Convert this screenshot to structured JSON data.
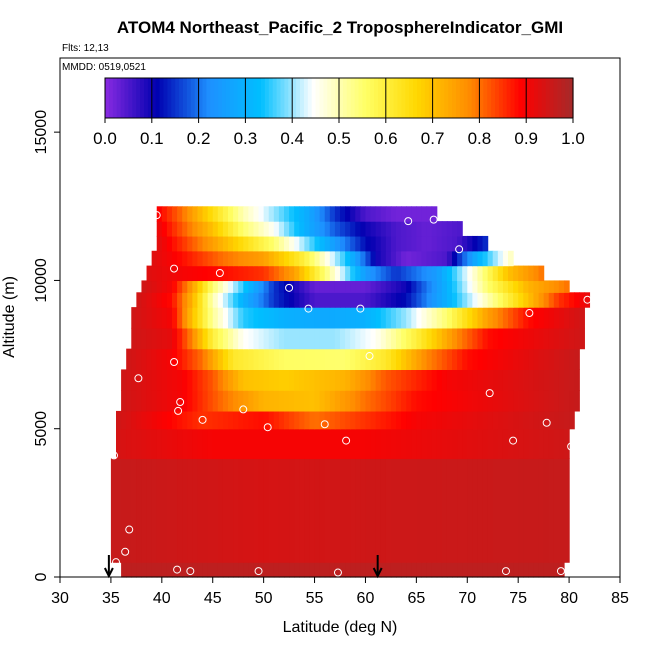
{
  "chart_data": {
    "type": "heatmap",
    "title": "ATOM4 Northeast_Pacific_2 TroposphereIndicator_GMI",
    "flights_note": "Flts: 12,13",
    "date_note": "MMDD: 0519,0521",
    "xlabel": "Latitude (deg N)",
    "ylabel": "Altitude (m)",
    "xlim": [
      30,
      85
    ],
    "ylim": [
      0,
      17500
    ],
    "x_ticks": [
      "30",
      "35",
      "40",
      "45",
      "50",
      "55",
      "60",
      "65",
      "70",
      "75",
      "80",
      "85"
    ],
    "y_ticks": [
      "0",
      "5000",
      "10000",
      "15000"
    ],
    "colorbar": {
      "range": [
        0.0,
        1.0
      ],
      "tick_labels": [
        "0.0",
        "0.1",
        "0.2",
        "0.3",
        "0.4",
        "0.5",
        "0.6",
        "0.7",
        "0.8",
        "0.9",
        "1.0"
      ],
      "colors": [
        "#8a2be2",
        "#0000b0",
        "#1e90ff",
        "#00bfff",
        "#ffffff",
        "#ffff66",
        "#ffd700",
        "#ff8c00",
        "#ff0000",
        "#a52a2a"
      ]
    },
    "field": {
      "description_rows": "altitude band (m) with latitude extent and value profile along latitude",
      "rows": [
        {
          "alt": [
            0,
            500
          ],
          "lat": [
            36.0,
            79.5
          ],
          "profile": [
            [
              36,
              0.97
            ],
            [
              79.5,
              0.97
            ]
          ]
        },
        {
          "alt": [
            500,
            4000
          ],
          "lat": [
            35.0,
            80.0
          ],
          "profile": [
            [
              35,
              0.96
            ],
            [
              50,
              0.94
            ],
            [
              60,
              0.95
            ],
            [
              80,
              0.96
            ]
          ]
        },
        {
          "alt": [
            4000,
            5000
          ],
          "lat": [
            35.5,
            80.0
          ],
          "profile": [
            [
              35.5,
              0.94
            ],
            [
              45,
              0.9
            ],
            [
              60,
              0.9
            ],
            [
              80,
              0.95
            ]
          ]
        },
        {
          "alt": [
            5000,
            5600
          ],
          "lat": [
            35.5,
            80.5
          ],
          "profile": [
            [
              35.5,
              0.95
            ],
            [
              44,
              0.85
            ],
            [
              50,
              0.88
            ],
            [
              55,
              0.8
            ],
            [
              60,
              0.85
            ],
            [
              65,
              0.9
            ],
            [
              80.5,
              0.96
            ]
          ]
        },
        {
          "alt": [
            5600,
            6300
          ],
          "lat": [
            36.0,
            81.0
          ],
          "profile": [
            [
              36,
              0.95
            ],
            [
              42,
              0.9
            ],
            [
              46,
              0.8
            ],
            [
              50,
              0.72
            ],
            [
              55,
              0.7
            ],
            [
              60,
              0.8
            ],
            [
              65,
              0.88
            ],
            [
              81,
              0.96
            ]
          ]
        },
        {
          "alt": [
            6300,
            7000
          ],
          "lat": [
            36.0,
            81.0
          ],
          "profile": [
            [
              36,
              0.95
            ],
            [
              42,
              0.9
            ],
            [
              45,
              0.82
            ],
            [
              48,
              0.7
            ],
            [
              52,
              0.68
            ],
            [
              58,
              0.72
            ],
            [
              62,
              0.82
            ],
            [
              68,
              0.9
            ],
            [
              81,
              0.96
            ]
          ]
        },
        {
          "alt": [
            7000,
            7700
          ],
          "lat": [
            36.5,
            81.0
          ],
          "profile": [
            [
              36.5,
              0.95
            ],
            [
              41,
              0.9
            ],
            [
              44,
              0.8
            ],
            [
              47,
              0.62
            ],
            [
              52,
              0.56
            ],
            [
              58,
              0.55
            ],
            [
              62,
              0.62
            ],
            [
              66,
              0.78
            ],
            [
              70,
              0.88
            ],
            [
              81,
              0.96
            ]
          ]
        },
        {
          "alt": [
            7700,
            8400
          ],
          "lat": [
            37.0,
            81.5
          ],
          "profile": [
            [
              37,
              0.95
            ],
            [
              41,
              0.92
            ],
            [
              43,
              0.78
            ],
            [
              45,
              0.6
            ],
            [
              48,
              0.45
            ],
            [
              52,
              0.4
            ],
            [
              57,
              0.4
            ],
            [
              61,
              0.45
            ],
            [
              65,
              0.6
            ],
            [
              69,
              0.78
            ],
            [
              72,
              0.88
            ],
            [
              81.5,
              0.95
            ]
          ]
        },
        {
          "alt": [
            8400,
            9100
          ],
          "lat": [
            37.0,
            81.5
          ],
          "profile": [
            [
              37,
              0.95
            ],
            [
              41,
              0.9
            ],
            [
              43,
              0.7
            ],
            [
              45,
              0.52
            ],
            [
              48,
              0.35
            ],
            [
              52,
              0.3
            ],
            [
              56,
              0.28
            ],
            [
              60,
              0.3
            ],
            [
              64,
              0.4
            ],
            [
              68,
              0.55
            ],
            [
              72,
              0.75
            ],
            [
              76,
              0.88
            ],
            [
              81.5,
              0.95
            ]
          ]
        },
        {
          "alt": [
            9100,
            9600
          ],
          "lat": [
            37.5,
            82.0
          ],
          "profile": [
            [
              37.5,
              0.95
            ],
            [
              41,
              0.88
            ],
            [
              43,
              0.72
            ],
            [
              45,
              0.5
            ],
            [
              48,
              0.3
            ],
            [
              51,
              0.15
            ],
            [
              55,
              0.05
            ],
            [
              60,
              0.05
            ],
            [
              64,
              0.12
            ],
            [
              68,
              0.3
            ],
            [
              72,
              0.5
            ],
            [
              76,
              0.7
            ],
            [
              79,
              0.85
            ],
            [
              82,
              0.92
            ]
          ]
        },
        {
          "alt": [
            9600,
            10000
          ],
          "lat": [
            38.0,
            80.0
          ],
          "profile": [
            [
              38,
              0.95
            ],
            [
              41,
              0.9
            ],
            [
              43,
              0.75
            ],
            [
              45,
              0.55
            ],
            [
              48,
              0.35
            ],
            [
              51,
              0.15
            ],
            [
              55,
              0.03
            ],
            [
              60,
              0.03
            ],
            [
              64,
              0.1
            ],
            [
              68,
              0.3
            ],
            [
              72,
              0.55
            ],
            [
              76,
              0.72
            ],
            [
              80,
              0.8
            ]
          ]
        },
        {
          "alt": [
            10000,
            10500
          ],
          "lat": [
            38.5,
            77.5
          ],
          "profile": [
            [
              38.5,
              0.93
            ],
            [
              42,
              0.9
            ],
            [
              46,
              0.88
            ],
            [
              50,
              0.85
            ],
            [
              53,
              0.75
            ],
            [
              56,
              0.55
            ],
            [
              60,
              0.25
            ],
            [
              63,
              0.15
            ],
            [
              67,
              0.25
            ],
            [
              71,
              0.5
            ],
            [
              74,
              0.7
            ],
            [
              77.5,
              0.8
            ]
          ]
        },
        {
          "alt": [
            10500,
            11000
          ],
          "lat": [
            39.0,
            74.5
          ],
          "profile": [
            [
              39,
              0.93
            ],
            [
              42,
              0.88
            ],
            [
              46,
              0.8
            ],
            [
              50,
              0.75
            ],
            [
              54,
              0.6
            ],
            [
              58,
              0.35
            ],
            [
              61,
              0.1
            ],
            [
              64,
              0.02
            ],
            [
              68,
              0.05
            ],
            [
              71,
              0.3
            ],
            [
              74.5,
              0.5
            ]
          ]
        },
        {
          "alt": [
            11000,
            11500
          ],
          "lat": [
            39.5,
            72.0
          ],
          "profile": [
            [
              39.5,
              0.93
            ],
            [
              42,
              0.85
            ],
            [
              45,
              0.75
            ],
            [
              48,
              0.65
            ],
            [
              51,
              0.55
            ],
            [
              54,
              0.4
            ],
            [
              57,
              0.25
            ],
            [
              60,
              0.12
            ],
            [
              63,
              0.05
            ],
            [
              66,
              0.03
            ],
            [
              69,
              0.05
            ],
            [
              72,
              0.15
            ]
          ]
        },
        {
          "alt": [
            11500,
            12000
          ],
          "lat": [
            39.5,
            69.5
          ],
          "profile": [
            [
              39.5,
              0.92
            ],
            [
              42,
              0.82
            ],
            [
              45,
              0.7
            ],
            [
              48,
              0.55
            ],
            [
              51,
              0.45
            ],
            [
              54,
              0.3
            ],
            [
              57,
              0.18
            ],
            [
              60,
              0.1
            ],
            [
              63,
              0.05
            ],
            [
              66,
              0.03
            ],
            [
              69.5,
              0.05
            ]
          ]
        },
        {
          "alt": [
            12000,
            12500
          ],
          "lat": [
            39.5,
            67.0
          ],
          "profile": [
            [
              39.5,
              0.9
            ],
            [
              42,
              0.8
            ],
            [
              45,
              0.65
            ],
            [
              48,
              0.5
            ],
            [
              51,
              0.4
            ],
            [
              54,
              0.3
            ],
            [
              57,
              0.15
            ],
            [
              60,
              0.05
            ],
            [
              63,
              0.02
            ],
            [
              67,
              0.02
            ]
          ]
        }
      ]
    },
    "observation_points": [
      {
        "lat": 35.5,
        "alt": 500
      },
      {
        "lat": 36.4,
        "alt": 850
      },
      {
        "lat": 36.8,
        "alt": 1600
      },
      {
        "lat": 35.3,
        "alt": 4100
      },
      {
        "lat": 37.7,
        "alt": 6700
      },
      {
        "lat": 41.5,
        "alt": 250
      },
      {
        "lat": 42.8,
        "alt": 200
      },
      {
        "lat": 41.2,
        "alt": 7250
      },
      {
        "lat": 41.8,
        "alt": 5900
      },
      {
        "lat": 41.6,
        "alt": 5600
      },
      {
        "lat": 44.0,
        "alt": 5300
      },
      {
        "lat": 48.0,
        "alt": 5650
      },
      {
        "lat": 50.4,
        "alt": 5050
      },
      {
        "lat": 41.2,
        "alt": 10400
      },
      {
        "lat": 45.7,
        "alt": 10250
      },
      {
        "lat": 39.5,
        "alt": 12200
      },
      {
        "lat": 49.5,
        "alt": 200
      },
      {
        "lat": 57.3,
        "alt": 150
      },
      {
        "lat": 58.1,
        "alt": 4600
      },
      {
        "lat": 56.0,
        "alt": 5150
      },
      {
        "lat": 60.4,
        "alt": 7450
      },
      {
        "lat": 52.5,
        "alt": 9750
      },
      {
        "lat": 54.4,
        "alt": 9050
      },
      {
        "lat": 59.5,
        "alt": 9050
      },
      {
        "lat": 64.2,
        "alt": 12000
      },
      {
        "lat": 66.7,
        "alt": 12050
      },
      {
        "lat": 69.2,
        "alt": 11050
      },
      {
        "lat": 72.2,
        "alt": 6200
      },
      {
        "lat": 76.1,
        "alt": 8900
      },
      {
        "lat": 74.5,
        "alt": 4600
      },
      {
        "lat": 77.8,
        "alt": 5200
      },
      {
        "lat": 80.2,
        "alt": 4400
      },
      {
        "lat": 81.8,
        "alt": 9350
      },
      {
        "lat": 73.8,
        "alt": 200
      },
      {
        "lat": 79.2,
        "alt": 200
      }
    ],
    "arrow_markers": [
      34.8,
      61.2
    ],
    "grid": false,
    "legend": "colorbar-top"
  }
}
